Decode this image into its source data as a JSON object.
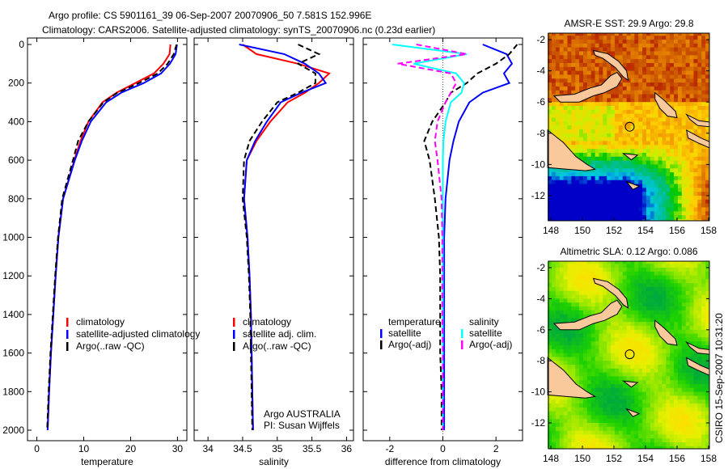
{
  "title_line1": "Argo profile: CS 5901161_39 06-Sep-2007 20070906_50 7.581S 152.996E",
  "title_line2": "Climatology: CARS2006. Satellite-adjusted climatology: synTS_20070906.nc (0.23d earlier)",
  "footer": "CSIRO 15-Sep-2007 10:31:20",
  "colors": {
    "climatology": "#ff0000",
    "satellite": "#0000ff",
    "argo": "#000000",
    "sal_satellite": "#00ffff",
    "sal_argo": "#ff00ff",
    "land": "#f9c89b"
  },
  "chart_data": [
    {
      "type": "line",
      "xlabel": "temperature",
      "ylabel": "",
      "xlim": [
        -2,
        32
      ],
      "ylim": [
        2050,
        0
      ],
      "xticks": [
        "0",
        "10",
        "20",
        "30"
      ],
      "xtick_values": [
        0,
        10,
        20,
        30
      ],
      "yticks": [
        "0",
        "200",
        "400",
        "600",
        "800",
        "1000",
        "1200",
        "1400",
        "1600",
        "1800",
        "2000"
      ],
      "legend": [
        "climatology",
        "satellite-adjusted climatology",
        "Argo(..raw -QC)"
      ],
      "depth": [
        0,
        50,
        100,
        150,
        200,
        250,
        300,
        400,
        500,
        600,
        800,
        1000,
        1200,
        1400,
        1600,
        1800,
        2000
      ],
      "series": [
        {
          "name": "climatology",
          "color": "#ff0000",
          "dash": false,
          "values": [
            28.5,
            28.3,
            27,
            25,
            21,
            17,
            14,
            11,
            9.3,
            8,
            5.6,
            4.6,
            4,
            3.5,
            3,
            2.6,
            2.3
          ]
        },
        {
          "name": "satellite-adjusted climatology",
          "color": "#0000ff",
          "dash": false,
          "values": [
            29.9,
            29.6,
            28.4,
            26.5,
            22.8,
            18,
            14.8,
            11.5,
            9.6,
            8.1,
            5.6,
            4.6,
            4,
            3.5,
            3,
            2.6,
            2.3
          ]
        },
        {
          "name": "Argo",
          "color": "#000000",
          "dash": true,
          "values": [
            29.8,
            29.2,
            27.9,
            25.8,
            21.8,
            17.2,
            14.2,
            11,
            8.8,
            7.7,
            5.4,
            4.5,
            3.9,
            3.4,
            2.9,
            2.5,
            2.2
          ]
        }
      ]
    },
    {
      "type": "line",
      "xlabel": "salinity",
      "xlim": [
        33.8,
        36.1
      ],
      "ylim": [
        2050,
        0
      ],
      "xticks": [
        "34",
        "34.5",
        "35",
        "35.5",
        "36"
      ],
      "xtick_values": [
        34,
        34.5,
        35,
        35.5,
        36
      ],
      "legend": [
        "climatology",
        "satellite adj. clim.",
        "Argo(..raw -QC)"
      ],
      "annotation": [
        "Argo AUSTRALIA",
        "PI: Susan Wijffels"
      ],
      "depth": [
        0,
        50,
        100,
        150,
        200,
        250,
        300,
        400,
        500,
        600,
        800,
        1000,
        1200,
        1400,
        1600,
        1800,
        2000
      ],
      "series": [
        {
          "name": "climatology",
          "color": "#ff0000",
          "dash": false,
          "values": [
            34.5,
            34.7,
            35.3,
            35.75,
            35.6,
            35.4,
            35.15,
            34.9,
            34.7,
            34.56,
            34.52,
            34.57,
            34.6,
            34.62,
            34.63,
            34.64,
            34.65
          ]
        },
        {
          "name": "satellite adj. clim.",
          "color": "#0000ff",
          "dash": false,
          "values": [
            34.45,
            35.1,
            35.4,
            35.6,
            35.7,
            35.35,
            35.05,
            34.85,
            34.68,
            34.56,
            34.52,
            34.57,
            34.6,
            34.62,
            34.63,
            34.64,
            34.65
          ]
        },
        {
          "name": "Argo",
          "color": "#000000",
          "dash": true,
          "values": [
            35.3,
            35.6,
            35.3,
            35.55,
            35.55,
            35.3,
            35.0,
            34.78,
            34.6,
            34.52,
            34.5,
            34.56,
            34.59,
            34.61,
            34.62,
            34.63,
            34.64
          ]
        }
      ]
    },
    {
      "type": "line",
      "xlabel": "difference from climatology",
      "xlim": [
        -3,
        3
      ],
      "ylim": [
        2050,
        0
      ],
      "xticks": [
        "-2",
        "0",
        "2"
      ],
      "xtick_values": [
        -2,
        0,
        2
      ],
      "legend_left": [
        "temperature",
        "satellite",
        "Argo(-adj)"
      ],
      "legend_right": [
        "salinity",
        "satellite",
        "Argo(-adj)"
      ],
      "depth": [
        0,
        50,
        100,
        150,
        200,
        250,
        300,
        400,
        500,
        600,
        800,
        1000,
        1200,
        1400,
        1600,
        1800,
        2000
      ],
      "series": [
        {
          "name": "temperature satellite",
          "color": "#0000ff",
          "dash": false,
          "values": [
            1.5,
            2.4,
            2.6,
            2.3,
            2.5,
            1.5,
            1.0,
            0.6,
            0.4,
            0.25,
            0.1,
            0.05,
            0.05,
            0.05,
            0.05,
            0.05,
            0.05
          ]
        },
        {
          "name": "temperature Argo(-adj)",
          "color": "#000000",
          "dash": true,
          "values": [
            2.8,
            2.5,
            2.0,
            1.3,
            0.9,
            0.3,
            0.1,
            -0.4,
            -0.7,
            -0.5,
            -0.3,
            -0.15,
            -0.1,
            -0.1,
            -0.1,
            -0.05,
            -0.05
          ]
        },
        {
          "name": "salinity satellite",
          "color": "#00ffff",
          "dash": false,
          "values": [
            -1.9,
            0.9,
            -1.1,
            0.5,
            0.8,
            0.7,
            0.3,
            0.1,
            0.02,
            0,
            0,
            0,
            0,
            0,
            0,
            0,
            0
          ]
        },
        {
          "name": "salinity Argo(-adj)",
          "color": "#ff00ff",
          "dash": true,
          "values": [
            -1.0,
            0.9,
            -1.7,
            0.3,
            0.5,
            0.3,
            0.1,
            -0.2,
            -0.3,
            -0.2,
            -0.05,
            -0.02,
            -0.02,
            -0.02,
            0,
            0,
            0
          ]
        }
      ]
    },
    {
      "type": "heatmap",
      "title": "AMSR-E SST: 29.9 Argo: 29.8",
      "xlim": [
        147.8,
        158.2
      ],
      "ylim": [
        -13.6,
        -1.5
      ],
      "xticks": [
        "148",
        "150",
        "152",
        "154",
        "156",
        "158"
      ],
      "yticks": [
        "-2",
        "-4",
        "-6",
        "-8",
        "-10",
        "-12"
      ],
      "marker": {
        "lon": 153.0,
        "lat": -7.58
      }
    },
    {
      "type": "heatmap",
      "title": "Altimetric SLA: 0.12 Argo: 0.086",
      "xlim": [
        147.8,
        158.2
      ],
      "ylim": [
        -13.6,
        -1.5
      ],
      "xticks": [
        "148",
        "150",
        "152",
        "154",
        "156",
        "158"
      ],
      "yticks": [
        "-2",
        "-4",
        "-6",
        "-8",
        "-10",
        "-12"
      ],
      "marker": {
        "lon": 153.0,
        "lat": -7.58
      }
    }
  ]
}
